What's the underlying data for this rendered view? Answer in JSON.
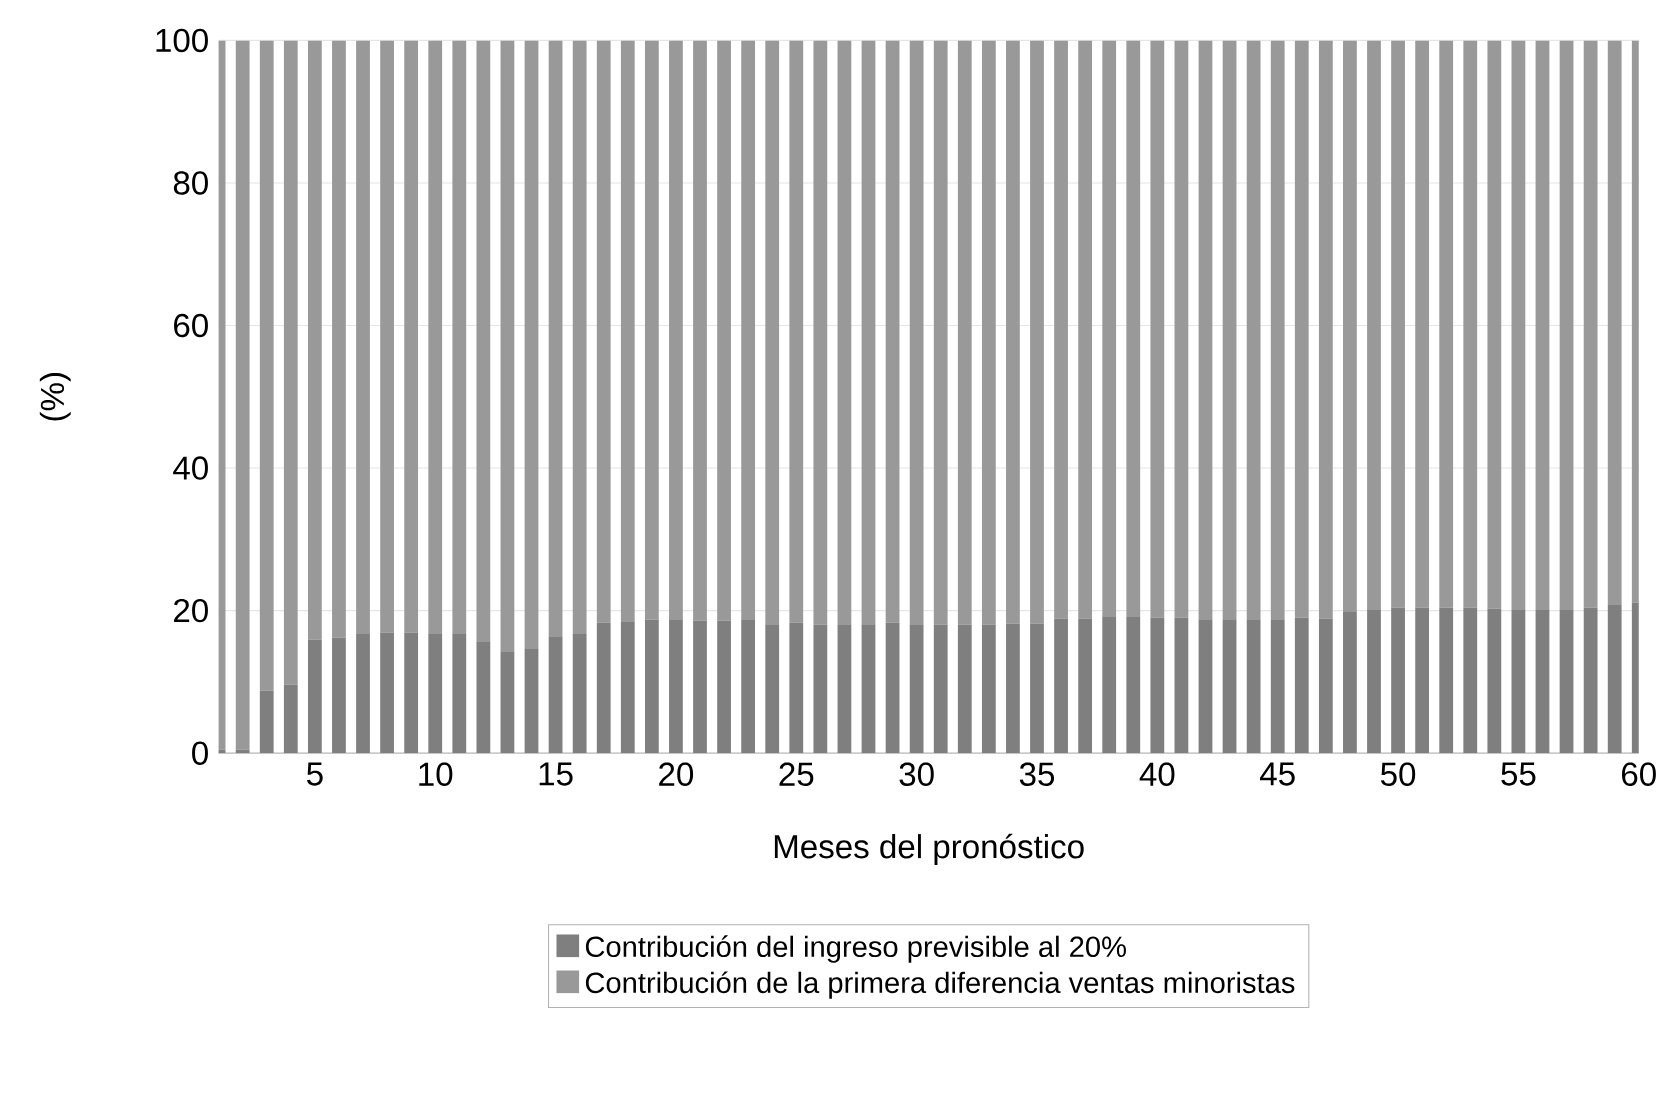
{
  "chart_data": {
    "type": "bar",
    "stacked": true,
    "xlabel": "Meses del pronóstico",
    "ylabel": "(%)",
    "categories": [
      null,
      null,
      null,
      null,
      "5",
      null,
      null,
      null,
      null,
      "10",
      null,
      null,
      null,
      null,
      "15",
      null,
      null,
      null,
      null,
      "20",
      null,
      null,
      null,
      null,
      "25",
      null,
      null,
      null,
      null,
      "30",
      null,
      null,
      null,
      null,
      "35",
      null,
      null,
      null,
      null,
      "40",
      null,
      null,
      null,
      null,
      "45",
      null,
      null,
      null,
      null,
      "50",
      null,
      null,
      null,
      null,
      "55",
      null,
      null,
      null,
      null,
      "60"
    ],
    "series": [
      {
        "name": "Contribución del ingreso previsible al 20%",
        "color": "#7f7f7f",
        "values": [
          0.5,
          0.5,
          8.8,
          9.6,
          15.9,
          16.2,
          16.7,
          16.9,
          16.9,
          16.7,
          16.7,
          15.6,
          14.3,
          14.7,
          16.3,
          16.7,
          18.3,
          18.5,
          18.7,
          18.8,
          18.6,
          18.6,
          18.8,
          18.1,
          18.3,
          18.0,
          18.1,
          18.1,
          18.3,
          18.1,
          18.0,
          18.0,
          18.0,
          18.2,
          18.2,
          18.9,
          18.9,
          19.2,
          19.1,
          19.0,
          19.0,
          18.8,
          18.8,
          18.8,
          18.8,
          19.0,
          18.9,
          19.9,
          20.1,
          20.4,
          20.4,
          20.4,
          20.4,
          20.3,
          20.1,
          20.1,
          20.1,
          20.4,
          20.9,
          21.1
        ]
      },
      {
        "name": "Contribución de la primera diferencia ventas minoristas",
        "color": "#999999",
        "values": [
          99.5,
          99.5,
          91.2,
          90.4,
          84.1,
          83.8,
          83.3,
          83.1,
          83.1,
          83.3,
          83.3,
          84.4,
          85.7,
          85.3,
          83.7,
          83.3,
          81.7,
          81.5,
          81.3,
          81.2,
          81.4,
          81.4,
          81.2,
          81.9,
          81.7,
          82.0,
          81.9,
          81.9,
          81.7,
          81.9,
          82.0,
          82.0,
          82.0,
          81.8,
          81.8,
          81.1,
          81.1,
          80.8,
          80.9,
          81.0,
          81.0,
          81.2,
          81.2,
          81.2,
          81.2,
          81.0,
          81.1,
          80.1,
          79.9,
          79.6,
          79.6,
          79.6,
          79.6,
          79.7,
          79.9,
          79.9,
          79.9,
          79.6,
          79.1,
          78.9
        ]
      }
    ],
    "ylim": [
      0,
      100
    ],
    "yticks": [
      0,
      20,
      40,
      60,
      80,
      100
    ],
    "grid": "y",
    "legend": "bottom"
  }
}
